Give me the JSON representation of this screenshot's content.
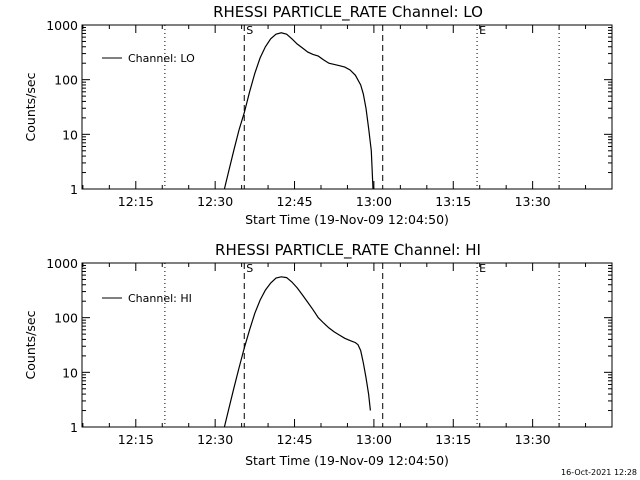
{
  "footer": {
    "timestamp": "16-Oct-2021 12:28"
  },
  "chart_data": [
    {
      "type": "line",
      "title": "RHESSI PARTICLE_RATE Channel: LO",
      "xlabel": "Start Time (19-Nov-09 12:04:50)",
      "ylabel": "Counts/sec",
      "yscale": "log",
      "xlim": [
        "12:04:50",
        "13:45:00"
      ],
      "ylim": [
        1,
        1000
      ],
      "x_ticks": [
        "12:15",
        "12:30",
        "12:45",
        "13:00",
        "13:15",
        "13:30"
      ],
      "y_ticks": [
        "1",
        "10",
        "100",
        "1000"
      ],
      "legend": {
        "placement": "top-left",
        "entries": [
          "Channel: LO"
        ]
      },
      "markers": [
        {
          "label": "",
          "time": "12:20:30",
          "style": "dotted"
        },
        {
          "label": "S",
          "time": "12:35:30",
          "style": "dashed"
        },
        {
          "label": "",
          "time": "13:01:40",
          "style": "dashed"
        },
        {
          "label": "E",
          "time": "13:19:30",
          "style": "dotted"
        },
        {
          "label": "",
          "time": "13:35:00",
          "style": "dotted"
        }
      ],
      "series": [
        {
          "name": "Channel: LO",
          "points": [
            [
              "12:31:45",
              1
            ],
            [
              "12:32:30",
              2
            ],
            [
              "12:33:30",
              5
            ],
            [
              "12:34:30",
              12
            ],
            [
              "12:35:30",
              25
            ],
            [
              "12:36:30",
              60
            ],
            [
              "12:37:30",
              130
            ],
            [
              "12:38:30",
              250
            ],
            [
              "12:39:30",
              400
            ],
            [
              "12:40:30",
              560
            ],
            [
              "12:41:30",
              680
            ],
            [
              "12:42:30",
              720
            ],
            [
              "12:43:30",
              680
            ],
            [
              "12:44:30",
              560
            ],
            [
              "12:45:30",
              450
            ],
            [
              "12:46:30",
              380
            ],
            [
              "12:47:30",
              320
            ],
            [
              "12:48:30",
              290
            ],
            [
              "12:49:30",
              270
            ],
            [
              "12:50:30",
              230
            ],
            [
              "12:51:30",
              200
            ],
            [
              "12:52:30",
              190
            ],
            [
              "12:53:30",
              180
            ],
            [
              "12:54:30",
              170
            ],
            [
              "12:55:30",
              150
            ],
            [
              "12:56:30",
              120
            ],
            [
              "12:57:30",
              80
            ],
            [
              "12:58:00",
              55
            ],
            [
              "12:58:30",
              30
            ],
            [
              "12:59:00",
              13
            ],
            [
              "12:59:30",
              5
            ],
            [
              "12:59:50",
              1
            ]
          ]
        }
      ]
    },
    {
      "type": "line",
      "title": "RHESSI PARTICLE_RATE Channel: HI",
      "xlabel": "Start Time (19-Nov-09 12:04:50)",
      "ylabel": "Counts/sec",
      "yscale": "log",
      "xlim": [
        "12:04:50",
        "13:45:00"
      ],
      "ylim": [
        1,
        1000
      ],
      "x_ticks": [
        "12:15",
        "12:30",
        "12:45",
        "13:00",
        "13:15",
        "13:30"
      ],
      "y_ticks": [
        "1",
        "10",
        "100",
        "1000"
      ],
      "legend": {
        "placement": "top-left",
        "entries": [
          "Channel: HI"
        ]
      },
      "markers": [
        {
          "label": "",
          "time": "12:20:30",
          "style": "dotted"
        },
        {
          "label": "S",
          "time": "12:35:30",
          "style": "dashed"
        },
        {
          "label": "",
          "time": "13:01:40",
          "style": "dashed"
        },
        {
          "label": "E",
          "time": "13:19:30",
          "style": "dotted"
        },
        {
          "label": "",
          "time": "13:35:00",
          "style": "dotted"
        }
      ],
      "series": [
        {
          "name": "Channel: HI",
          "points": [
            [
              "12:31:45",
              1
            ],
            [
              "12:32:30",
              2
            ],
            [
              "12:33:30",
              5
            ],
            [
              "12:34:30",
              12
            ],
            [
              "12:35:30",
              28
            ],
            [
              "12:36:30",
              60
            ],
            [
              "12:37:30",
              120
            ],
            [
              "12:38:30",
              210
            ],
            [
              "12:39:30",
              320
            ],
            [
              "12:40:30",
              430
            ],
            [
              "12:41:30",
              530
            ],
            [
              "12:42:30",
              560
            ],
            [
              "12:43:30",
              540
            ],
            [
              "12:44:30",
              450
            ],
            [
              "12:45:30",
              350
            ],
            [
              "12:46:30",
              260
            ],
            [
              "12:47:30",
              190
            ],
            [
              "12:48:30",
              140
            ],
            [
              "12:49:30",
              100
            ],
            [
              "12:50:30",
              80
            ],
            [
              "12:51:30",
              65
            ],
            [
              "12:52:30",
              55
            ],
            [
              "12:53:30",
              48
            ],
            [
              "12:54:30",
              42
            ],
            [
              "12:55:30",
              38
            ],
            [
              "12:56:30",
              35
            ],
            [
              "12:57:00",
              32
            ],
            [
              "12:57:30",
              25
            ],
            [
              "12:58:00",
              15
            ],
            [
              "12:58:30",
              8
            ],
            [
              "12:59:00",
              4
            ],
            [
              "12:59:20",
              2
            ]
          ]
        }
      ]
    }
  ]
}
